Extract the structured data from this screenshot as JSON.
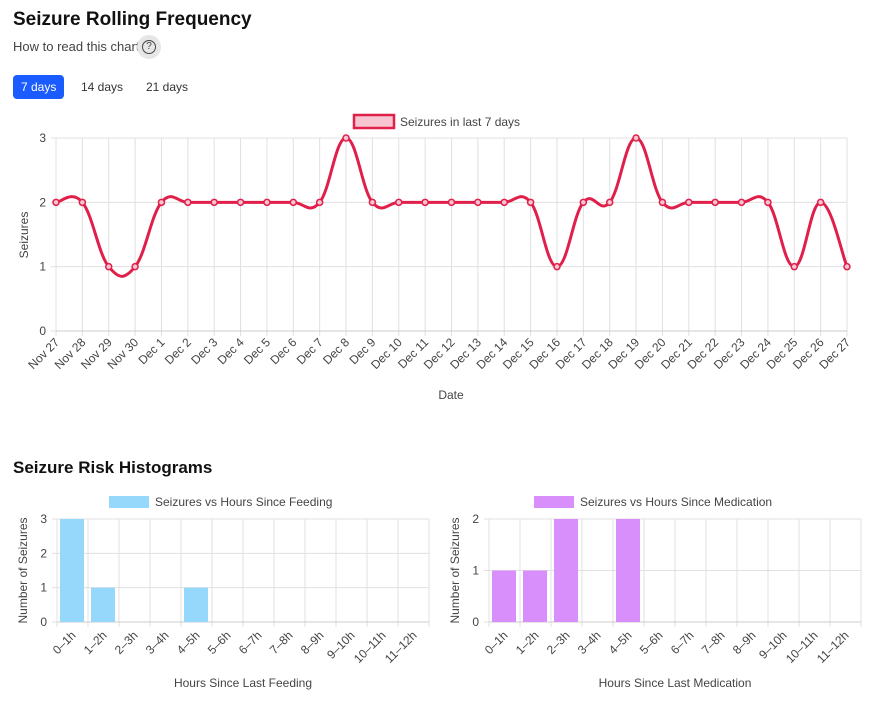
{
  "header": {
    "title": "Seizure Rolling Frequency",
    "how_to": "How to read this chart",
    "help_icon": "question-circle-icon"
  },
  "tabs": [
    {
      "label": "7 days",
      "active": true
    },
    {
      "label": "14 days",
      "active": false
    },
    {
      "label": "21 days",
      "active": false
    }
  ],
  "histograms_title": "Seizure Risk Histograms",
  "chart_data": [
    {
      "type": "line",
      "legend": "Seizures in last 7 days",
      "legend_position": "top",
      "xlabel": "Date",
      "ylabel": "Seizures",
      "ylim": [
        0,
        3
      ],
      "grid": true,
      "color": "#e0204a",
      "x": [
        "Nov 27",
        "Nov 28",
        "Nov 29",
        "Nov 30",
        "Dec 1",
        "Dec 2",
        "Dec 3",
        "Dec 4",
        "Dec 5",
        "Dec 6",
        "Dec 7",
        "Dec 8",
        "Dec 9",
        "Dec 10",
        "Dec 11",
        "Dec 12",
        "Dec 13",
        "Dec 14",
        "Dec 15",
        "Dec 16",
        "Dec 17",
        "Dec 18",
        "Dec 19",
        "Dec 20",
        "Dec 21",
        "Dec 22",
        "Dec 23",
        "Dec 24",
        "Dec 25",
        "Dec 26",
        "Dec 27"
      ],
      "y": [
        2,
        2,
        1,
        1,
        2,
        2,
        2,
        2,
        2,
        2,
        2,
        3,
        2,
        2,
        2,
        2,
        2,
        2,
        2,
        1,
        2,
        2,
        3,
        2,
        2,
        2,
        2,
        2,
        1,
        2,
        1
      ],
      "yticks": [
        "0",
        "1",
        "2",
        "3"
      ]
    },
    {
      "type": "bar",
      "legend": "Seizures vs Hours Since Feeding",
      "legend_position": "top",
      "xlabel": "Hours Since Last Feeding",
      "ylabel": "Number of Seizures",
      "ylim": [
        0,
        3
      ],
      "grid": true,
      "color": "#95d8fb",
      "categories": [
        "0–1h",
        "1–2h",
        "2–3h",
        "3–4h",
        "4–5h",
        "5–6h",
        "6–7h",
        "7–8h",
        "8–9h",
        "9–10h",
        "10–11h",
        "11–12h"
      ],
      "values": [
        3,
        1,
        0,
        0,
        1,
        0,
        0,
        0,
        0,
        0,
        0,
        0
      ],
      "yticks": [
        "0",
        "1",
        "2",
        "3"
      ]
    },
    {
      "type": "bar",
      "legend": "Seizures vs Hours Since Medication",
      "legend_position": "top",
      "xlabel": "Hours Since Last Medication",
      "ylabel": "Number of Seizures",
      "ylim": [
        0,
        2
      ],
      "grid": true,
      "color": "#d98ffb",
      "categories": [
        "0–1h",
        "1–2h",
        "2–3h",
        "3–4h",
        "4–5h",
        "5–6h",
        "6–7h",
        "7–8h",
        "8–9h",
        "9–10h",
        "10–11h",
        "11–12h"
      ],
      "values": [
        1,
        1,
        2,
        0,
        2,
        0,
        0,
        0,
        0,
        0,
        0,
        0
      ],
      "yticks": [
        "0",
        "1",
        "2"
      ]
    }
  ]
}
